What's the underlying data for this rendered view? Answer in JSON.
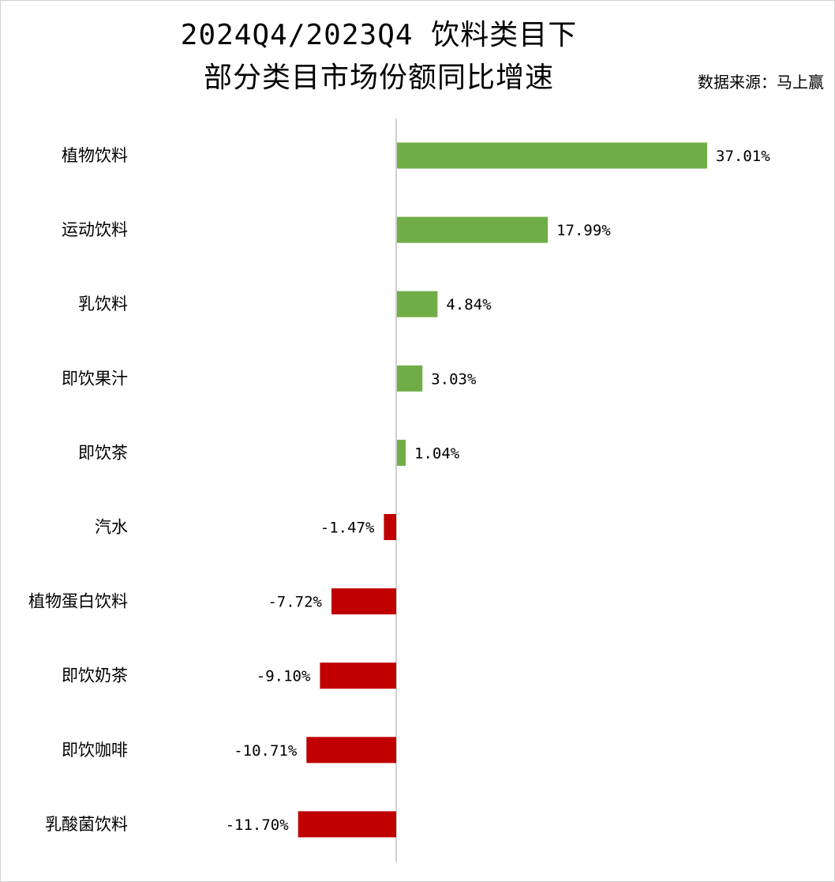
{
  "header": {
    "title_line1": "2024Q4/2023Q4 饮料类目下",
    "title_line2": "部分类目市场份额同比增速",
    "source": "数据来源：马上赢"
  },
  "colors": {
    "positive": "#70ad47",
    "negative": "#c00000",
    "axis": "#bfbfbf"
  },
  "chart_data": {
    "type": "bar",
    "orientation": "horizontal",
    "title": "2024Q4/2023Q4 饮料类目下部分类目市场份额同比增速",
    "categories": [
      "植物饮料",
      "运动饮料",
      "乳饮料",
      "即饮果汁",
      "即饮茶",
      "汽水",
      "植物蛋白饮料",
      "即饮奶茶",
      "即饮咖啡",
      "乳酸菌饮料"
    ],
    "values": [
      37.01,
      17.99,
      4.84,
      3.03,
      1.04,
      -1.47,
      -7.72,
      -9.1,
      -10.71,
      -11.7
    ],
    "data_labels": [
      "37.01%",
      "17.99%",
      "4.84%",
      "3.03%",
      "1.04%",
      "-1.47%",
      "-7.72%",
      "-9.10%",
      "-10.71%",
      "-11.70%"
    ],
    "xlabel": "",
    "ylabel": "",
    "unit": "%",
    "grid": false,
    "legend": "none"
  }
}
